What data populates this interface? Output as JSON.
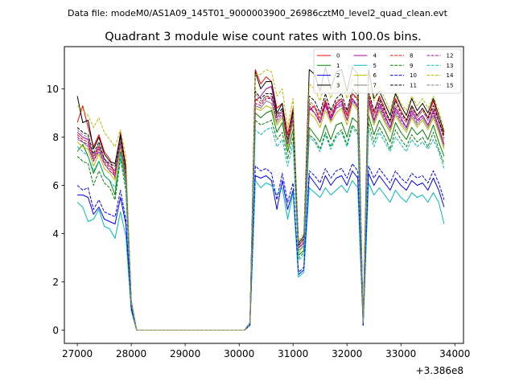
{
  "chart_data": {
    "type": "line",
    "suptitle": "Data file: modeM0/AS1A09_145T01_9000003900_26986cztM0_level2_quad_clean.evt",
    "title": "Quadrant 3 module wise count rates with 100.0s bins.",
    "xlabel": "",
    "ylabel": "",
    "x_offset_label": "+3.386e8",
    "xlim": [
      26760,
      34160
    ],
    "ylim": [
      -0.55,
      11.75
    ],
    "xticks": [
      27000,
      28000,
      29000,
      30000,
      31000,
      32000,
      33000,
      34000
    ],
    "xtick_labels": [
      "27000",
      "28000",
      "29000",
      "30000",
      "31000",
      "32000",
      "33000",
      "34000"
    ],
    "yticks": [
      0,
      2,
      4,
      6,
      8,
      10
    ],
    "ytick_labels": [
      "0",
      "2",
      "4",
      "6",
      "8",
      "10"
    ],
    "legend_position": "top-right",
    "grid": false,
    "x": [
      27000,
      27100,
      27200,
      27300,
      27400,
      27500,
      27600,
      27700,
      27800,
      27900,
      28000,
      28100,
      28200,
      28300,
      28400,
      28500,
      28600,
      28700,
      28800,
      28900,
      29000,
      29100,
      29200,
      29300,
      29400,
      29500,
      29600,
      29700,
      29800,
      29900,
      30000,
      30100,
      30200,
      30300,
      30400,
      30500,
      30600,
      30700,
      30800,
      30900,
      31000,
      31100,
      31200,
      31300,
      31400,
      31500,
      31600,
      31700,
      31800,
      31900,
      32000,
      32100,
      32200,
      32300,
      32400,
      32500,
      32600,
      32700,
      32800,
      32900,
      33000,
      33100,
      33200,
      33300,
      33400,
      33500,
      33600,
      33700,
      33800
    ],
    "series": [
      {
        "name": "0",
        "color": "#ff0000",
        "dash": "solid",
        "values": [
          8.6,
          9.3,
          8.4,
          7.6,
          8.1,
          7.4,
          7.1,
          6.3,
          8.2,
          6.8,
          1.2,
          0,
          0,
          0,
          0,
          0,
          0,
          0,
          0,
          0,
          0,
          0,
          0,
          0,
          0,
          0,
          0,
          0,
          0,
          0,
          0,
          0,
          0.3,
          10.8,
          10.2,
          10.5,
          10.3,
          9.2,
          9.4,
          8.1,
          9.2,
          3.5,
          3.8,
          9.1,
          9.3,
          8.6,
          9.5,
          8.7,
          9.4,
          9.6,
          8.9,
          9.8,
          9.6,
          0.4,
          9.8,
          9.0,
          9.7,
          9.2,
          8.6,
          9.6,
          9.1,
          8.7,
          9.3,
          8.9,
          9.2,
          8.8,
          9.5,
          8.7,
          8.1
        ]
      },
      {
        "name": "1",
        "color": "#008000",
        "dash": "solid",
        "values": [
          7.4,
          7.7,
          7.2,
          6.5,
          7.0,
          6.4,
          6.2,
          5.6,
          7.4,
          6.1,
          1.1,
          0,
          0,
          0,
          0,
          0,
          0,
          0,
          0,
          0,
          0,
          0,
          0,
          0,
          0,
          0,
          0,
          0,
          0,
          0,
          0,
          0,
          0.3,
          9.0,
          8.8,
          9.0,
          9.1,
          8.2,
          8.6,
          7.4,
          8.3,
          3.1,
          3.3,
          8.4,
          8.1,
          7.8,
          8.5,
          7.9,
          8.5,
          8.6,
          8.0,
          8.8,
          8.6,
          0.3,
          8.9,
          8.1,
          8.7,
          8.3,
          7.8,
          8.6,
          8.2,
          7.9,
          8.4,
          8.1,
          8.3,
          7.9,
          8.5,
          7.8,
          7.2
        ]
      },
      {
        "name": "2",
        "color": "#0000ff",
        "dash": "solid",
        "values": [
          5.6,
          5.6,
          5.5,
          4.8,
          5.1,
          4.6,
          4.5,
          4.4,
          5.5,
          4.4,
          0.9,
          0,
          0,
          0,
          0,
          0,
          0,
          0,
          0,
          0,
          0,
          0,
          0,
          0,
          0,
          0,
          0,
          0,
          0,
          0,
          0,
          0,
          0.2,
          6.4,
          6.3,
          6.4,
          6.2,
          5.0,
          6.2,
          5.0,
          5.8,
          2.3,
          2.5,
          6.4,
          6.1,
          5.8,
          6.4,
          6.0,
          6.3,
          6.4,
          6.0,
          6.6,
          6.3,
          0.2,
          6.5,
          6.0,
          6.4,
          6.1,
          5.8,
          6.3,
          6.0,
          5.8,
          6.2,
          6.0,
          6.1,
          5.8,
          6.3,
          5.8,
          5.1
        ]
      },
      {
        "name": "3",
        "color": "#000000",
        "dash": "solid",
        "values": [
          9.7,
          8.6,
          8.7,
          7.5,
          8.0,
          7.3,
          7.0,
          6.9,
          8.1,
          6.7,
          1.2,
          0,
          0,
          0,
          0,
          0,
          0,
          0,
          0,
          0,
          0,
          0,
          0,
          0,
          0,
          0,
          0,
          0,
          0,
          0,
          0,
          0,
          0.3,
          10.7,
          10.0,
          10.3,
          10.3,
          9.0,
          9.4,
          7.8,
          9.1,
          3.6,
          3.9,
          10.8,
          10.6,
          9.9,
          10.9,
          10.0,
          10.7,
          10.8,
          9.9,
          10.9,
          10.6,
          0.4,
          10.8,
          9.6,
          9.9,
          9.4,
          8.9,
          9.8,
          9.3,
          8.9,
          9.6,
          9.1,
          9.4,
          9.0,
          9.6,
          8.9,
          8.2
        ]
      },
      {
        "name": "4",
        "color": "#aa00aa",
        "dash": "solid",
        "values": [
          8.2,
          8.0,
          7.9,
          7.2,
          7.6,
          7.1,
          6.8,
          6.6,
          7.8,
          6.4,
          1.1,
          0,
          0,
          0,
          0,
          0,
          0,
          0,
          0,
          0,
          0,
          0,
          0,
          0,
          0,
          0,
          0,
          0,
          0,
          0,
          0,
          0,
          0.3,
          9.5,
          9.7,
          10.0,
          10.1,
          8.8,
          9.1,
          7.6,
          8.8,
          3.4,
          3.6,
          9.3,
          9.0,
          8.6,
          9.4,
          8.8,
          9.3,
          9.5,
          8.7,
          9.6,
          9.3,
          0.3,
          9.6,
          8.7,
          9.4,
          8.9,
          8.4,
          9.2,
          8.8,
          8.4,
          9.1,
          8.7,
          8.9,
          8.5,
          9.1,
          8.4,
          7.7
        ]
      },
      {
        "name": "5",
        "color": "#00bbbb",
        "dash": "solid",
        "values": [
          5.3,
          5.1,
          4.5,
          4.6,
          5.0,
          4.3,
          4.2,
          3.8,
          4.9,
          3.9,
          0.8,
          0,
          0,
          0,
          0,
          0,
          0,
          0,
          0,
          0,
          0,
          0,
          0,
          0,
          0,
          0,
          0,
          0,
          0,
          0,
          0,
          0,
          0.2,
          6.2,
          5.9,
          6.1,
          6.0,
          5.6,
          5.9,
          4.6,
          5.7,
          2.2,
          2.4,
          5.9,
          5.7,
          5.5,
          5.9,
          5.6,
          5.8,
          6.0,
          5.7,
          6.2,
          5.9,
          0.2,
          6.1,
          5.6,
          5.9,
          5.6,
          5.3,
          5.8,
          5.5,
          5.3,
          5.7,
          5.5,
          5.6,
          5.3,
          5.7,
          5.3,
          4.4
        ]
      },
      {
        "name": "6",
        "color": "#bbbb00",
        "dash": "solid",
        "values": [
          7.8,
          7.6,
          7.5,
          6.8,
          7.3,
          6.7,
          6.5,
          6.2,
          7.6,
          6.2,
          1.1,
          0,
          0,
          0,
          0,
          0,
          0,
          0,
          0,
          0,
          0,
          0,
          0,
          0,
          0,
          0,
          0,
          0,
          0,
          0,
          0,
          0,
          0.3,
          9.2,
          9.1,
          9.3,
          9.2,
          8.5,
          8.8,
          7.6,
          8.6,
          3.2,
          3.5,
          9.0,
          8.8,
          8.4,
          9.1,
          8.6,
          9.0,
          9.2,
          8.5,
          9.4,
          9.1,
          0.3,
          9.3,
          8.5,
          9.1,
          8.6,
          8.2,
          8.9,
          8.5,
          8.2,
          8.8,
          8.4,
          8.7,
          8.3,
          8.8,
          8.2,
          7.5
        ]
      },
      {
        "name": "7",
        "color": "#808080",
        "dash": "solid",
        "values": [
          7.9,
          7.8,
          7.6,
          7.0,
          7.4,
          6.9,
          6.6,
          6.4,
          7.7,
          6.3,
          1.1,
          0,
          0,
          0,
          0,
          0,
          0,
          0,
          0,
          0,
          0,
          0,
          0,
          0,
          0,
          0,
          0,
          0,
          0,
          0,
          0,
          0,
          0.3,
          9.3,
          9.2,
          9.5,
          9.4,
          8.6,
          8.9,
          7.7,
          8.7,
          3.3,
          3.5,
          9.2,
          9.0,
          8.6,
          9.3,
          8.7,
          9.2,
          9.3,
          8.7,
          9.5,
          9.2,
          0.3,
          9.4,
          8.6,
          9.2,
          8.7,
          8.3,
          9.0,
          8.6,
          8.3,
          8.9,
          8.5,
          8.8,
          8.4,
          8.9,
          8.3,
          7.6
        ]
      },
      {
        "name": "8",
        "color": "#ff0000",
        "dash": "dashed",
        "values": [
          8.1,
          7.9,
          7.8,
          7.1,
          7.6,
          7.0,
          6.7,
          6.5,
          7.9,
          6.4,
          1.1,
          0,
          0,
          0,
          0,
          0,
          0,
          0,
          0,
          0,
          0,
          0,
          0,
          0,
          0,
          0,
          0,
          0,
          0,
          0,
          0,
          0,
          0.3,
          9.6,
          9.4,
          9.7,
          9.6,
          8.8,
          9.1,
          7.9,
          8.9,
          3.4,
          3.7,
          9.4,
          9.2,
          8.8,
          9.5,
          8.9,
          9.4,
          9.6,
          8.9,
          9.8,
          9.5,
          0.3,
          9.7,
          8.9,
          9.5,
          9.0,
          8.6,
          9.3,
          8.9,
          8.6,
          9.2,
          8.8,
          9.1,
          8.7,
          9.2,
          8.6,
          7.9
        ]
      },
      {
        "name": "9",
        "color": "#008000",
        "dash": "dashed",
        "values": [
          7.2,
          7.0,
          6.9,
          6.0,
          6.6,
          6.1,
          5.9,
          5.4,
          7.1,
          5.8,
          1.0,
          0,
          0,
          0,
          0,
          0,
          0,
          0,
          0,
          0,
          0,
          0,
          0,
          0,
          0,
          0,
          0,
          0,
          0,
          0,
          0,
          0,
          0.3,
          8.7,
          8.5,
          8.6,
          8.7,
          7.9,
          8.2,
          7.1,
          8.0,
          3.0,
          3.2,
          8.1,
          7.9,
          7.5,
          8.2,
          7.6,
          8.1,
          8.3,
          7.7,
          8.5,
          8.2,
          0.3,
          8.6,
          7.8,
          8.4,
          8.0,
          7.5,
          8.3,
          7.9,
          7.6,
          8.1,
          7.8,
          8.0,
          7.6,
          8.2,
          7.5,
          6.9
        ]
      },
      {
        "name": "10",
        "color": "#0000ff",
        "dash": "dashed",
        "values": [
          6.0,
          5.8,
          5.9,
          5.0,
          5.4,
          4.9,
          4.8,
          4.7,
          5.8,
          4.6,
          0.9,
          0,
          0,
          0,
          0,
          0,
          0,
          0,
          0,
          0,
          0,
          0,
          0,
          0,
          0,
          0,
          0,
          0,
          0,
          0,
          0,
          0,
          0.2,
          6.8,
          6.6,
          6.7,
          6.5,
          5.4,
          6.5,
          5.3,
          6.1,
          2.4,
          2.6,
          6.6,
          6.4,
          6.1,
          6.7,
          6.3,
          6.6,
          6.7,
          6.3,
          6.9,
          6.6,
          0.2,
          6.8,
          6.3,
          6.7,
          6.4,
          6.1,
          6.6,
          6.3,
          6.1,
          6.5,
          6.3,
          6.4,
          6.1,
          6.6,
          6.1,
          5.4
        ]
      },
      {
        "name": "11",
        "color": "#000000",
        "dash": "dashed",
        "values": [
          8.4,
          8.2,
          8.1,
          7.3,
          7.8,
          7.1,
          6.9,
          6.8,
          8.0,
          6.6,
          1.2,
          0,
          0,
          0,
          0,
          0,
          0,
          0,
          0,
          0,
          0,
          0,
          0,
          0,
          0,
          0,
          0,
          0,
          0,
          0,
          0,
          0,
          0.3,
          9.9,
          9.6,
          9.8,
          9.8,
          8.9,
          9.2,
          7.9,
          9.0,
          3.5,
          3.8,
          9.7,
          9.5,
          9.0,
          9.8,
          9.1,
          9.6,
          9.8,
          9.1,
          10.0,
          9.7,
          0.3,
          9.9,
          9.1,
          9.6,
          9.1,
          8.7,
          9.5,
          9.0,
          8.7,
          9.3,
          8.9,
          9.2,
          8.8,
          9.3,
          8.7,
          8.0
        ]
      },
      {
        "name": "12",
        "color": "#aa00aa",
        "dash": "dashed",
        "values": [
          8.0,
          7.8,
          7.7,
          7.0,
          7.5,
          6.9,
          6.6,
          6.4,
          7.8,
          6.3,
          1.1,
          0,
          0,
          0,
          0,
          0,
          0,
          0,
          0,
          0,
          0,
          0,
          0,
          0,
          0,
          0,
          0,
          0,
          0,
          0,
          0,
          0,
          0.3,
          9.4,
          9.3,
          9.6,
          9.6,
          8.7,
          9.0,
          7.7,
          8.8,
          3.4,
          3.6,
          9.2,
          9.0,
          8.6,
          9.3,
          8.7,
          9.2,
          9.4,
          8.7,
          9.6,
          9.2,
          0.3,
          9.5,
          8.7,
          9.3,
          8.8,
          8.4,
          9.1,
          8.7,
          8.4,
          9.0,
          8.6,
          8.9,
          8.5,
          9.0,
          8.4,
          7.7
        ]
      },
      {
        "name": "13",
        "color": "#00bbbb",
        "dash": "dashed",
        "values": [
          7.6,
          7.4,
          7.2,
          6.6,
          7.0,
          6.4,
          6.2,
          5.9,
          7.3,
          6.0,
          1.1,
          0,
          0,
          0,
          0,
          0,
          0,
          0,
          0,
          0,
          0,
          0,
          0,
          0,
          0,
          0,
          0,
          0,
          0,
          0,
          0,
          0,
          0.3,
          8.3,
          8.1,
          8.3,
          8.4,
          7.6,
          7.9,
          6.8,
          7.7,
          2.9,
          3.1,
          8.0,
          7.8,
          7.4,
          8.1,
          7.5,
          8.0,
          8.2,
          7.6,
          8.4,
          8.1,
          0.3,
          8.3,
          7.6,
          8.2,
          7.8,
          7.4,
          8.0,
          7.7,
          7.4,
          7.9,
          7.6,
          7.8,
          7.5,
          7.9,
          7.4,
          6.7
        ]
      },
      {
        "name": "14",
        "color": "#bbbb00",
        "dash": "dashed",
        "values": [
          9.3,
          9.1,
          8.9,
          8.4,
          8.8,
          8.2,
          7.9,
          7.6,
          8.3,
          7.2,
          1.2,
          0,
          0,
          0,
          0,
          0,
          0,
          0,
          0,
          0,
          0,
          0,
          0,
          0,
          0,
          0,
          0,
          0,
          0,
          0,
          0,
          0,
          0.3,
          10.6,
          10.6,
          10.8,
          10.7,
          9.7,
          10.0,
          8.4,
          9.6,
          3.7,
          4.0,
          10.2,
          10.0,
          9.5,
          10.3,
          9.6,
          10.2,
          10.3,
          9.6,
          10.4,
          10.1,
          0.4,
          10.3,
          9.5,
          10.1,
          9.6,
          9.1,
          9.9,
          9.4,
          9.1,
          9.7,
          9.3,
          9.6,
          9.2,
          9.7,
          9.1,
          8.3
        ]
      },
      {
        "name": "15",
        "color": "#808080",
        "dash": "dashed",
        "values": [
          8.3,
          8.1,
          8.0,
          7.2,
          7.7,
          7.0,
          6.8,
          6.7,
          7.9,
          6.5,
          1.2,
          0,
          0,
          0,
          0,
          0,
          0,
          0,
          0,
          0,
          0,
          0,
          0,
          0,
          0,
          0,
          0,
          0,
          0,
          0,
          0,
          0,
          0.3,
          9.8,
          9.5,
          9.7,
          9.7,
          8.8,
          9.1,
          7.8,
          8.9,
          3.4,
          3.7,
          9.5,
          9.3,
          8.9,
          9.6,
          9.0,
          9.5,
          9.6,
          9.0,
          9.9,
          9.5,
          0.3,
          9.8,
          9.0,
          9.5,
          9.0,
          8.6,
          9.3,
          8.9,
          8.6,
          9.2,
          8.8,
          9.1,
          8.7,
          9.2,
          8.6,
          7.9
        ]
      }
    ]
  }
}
